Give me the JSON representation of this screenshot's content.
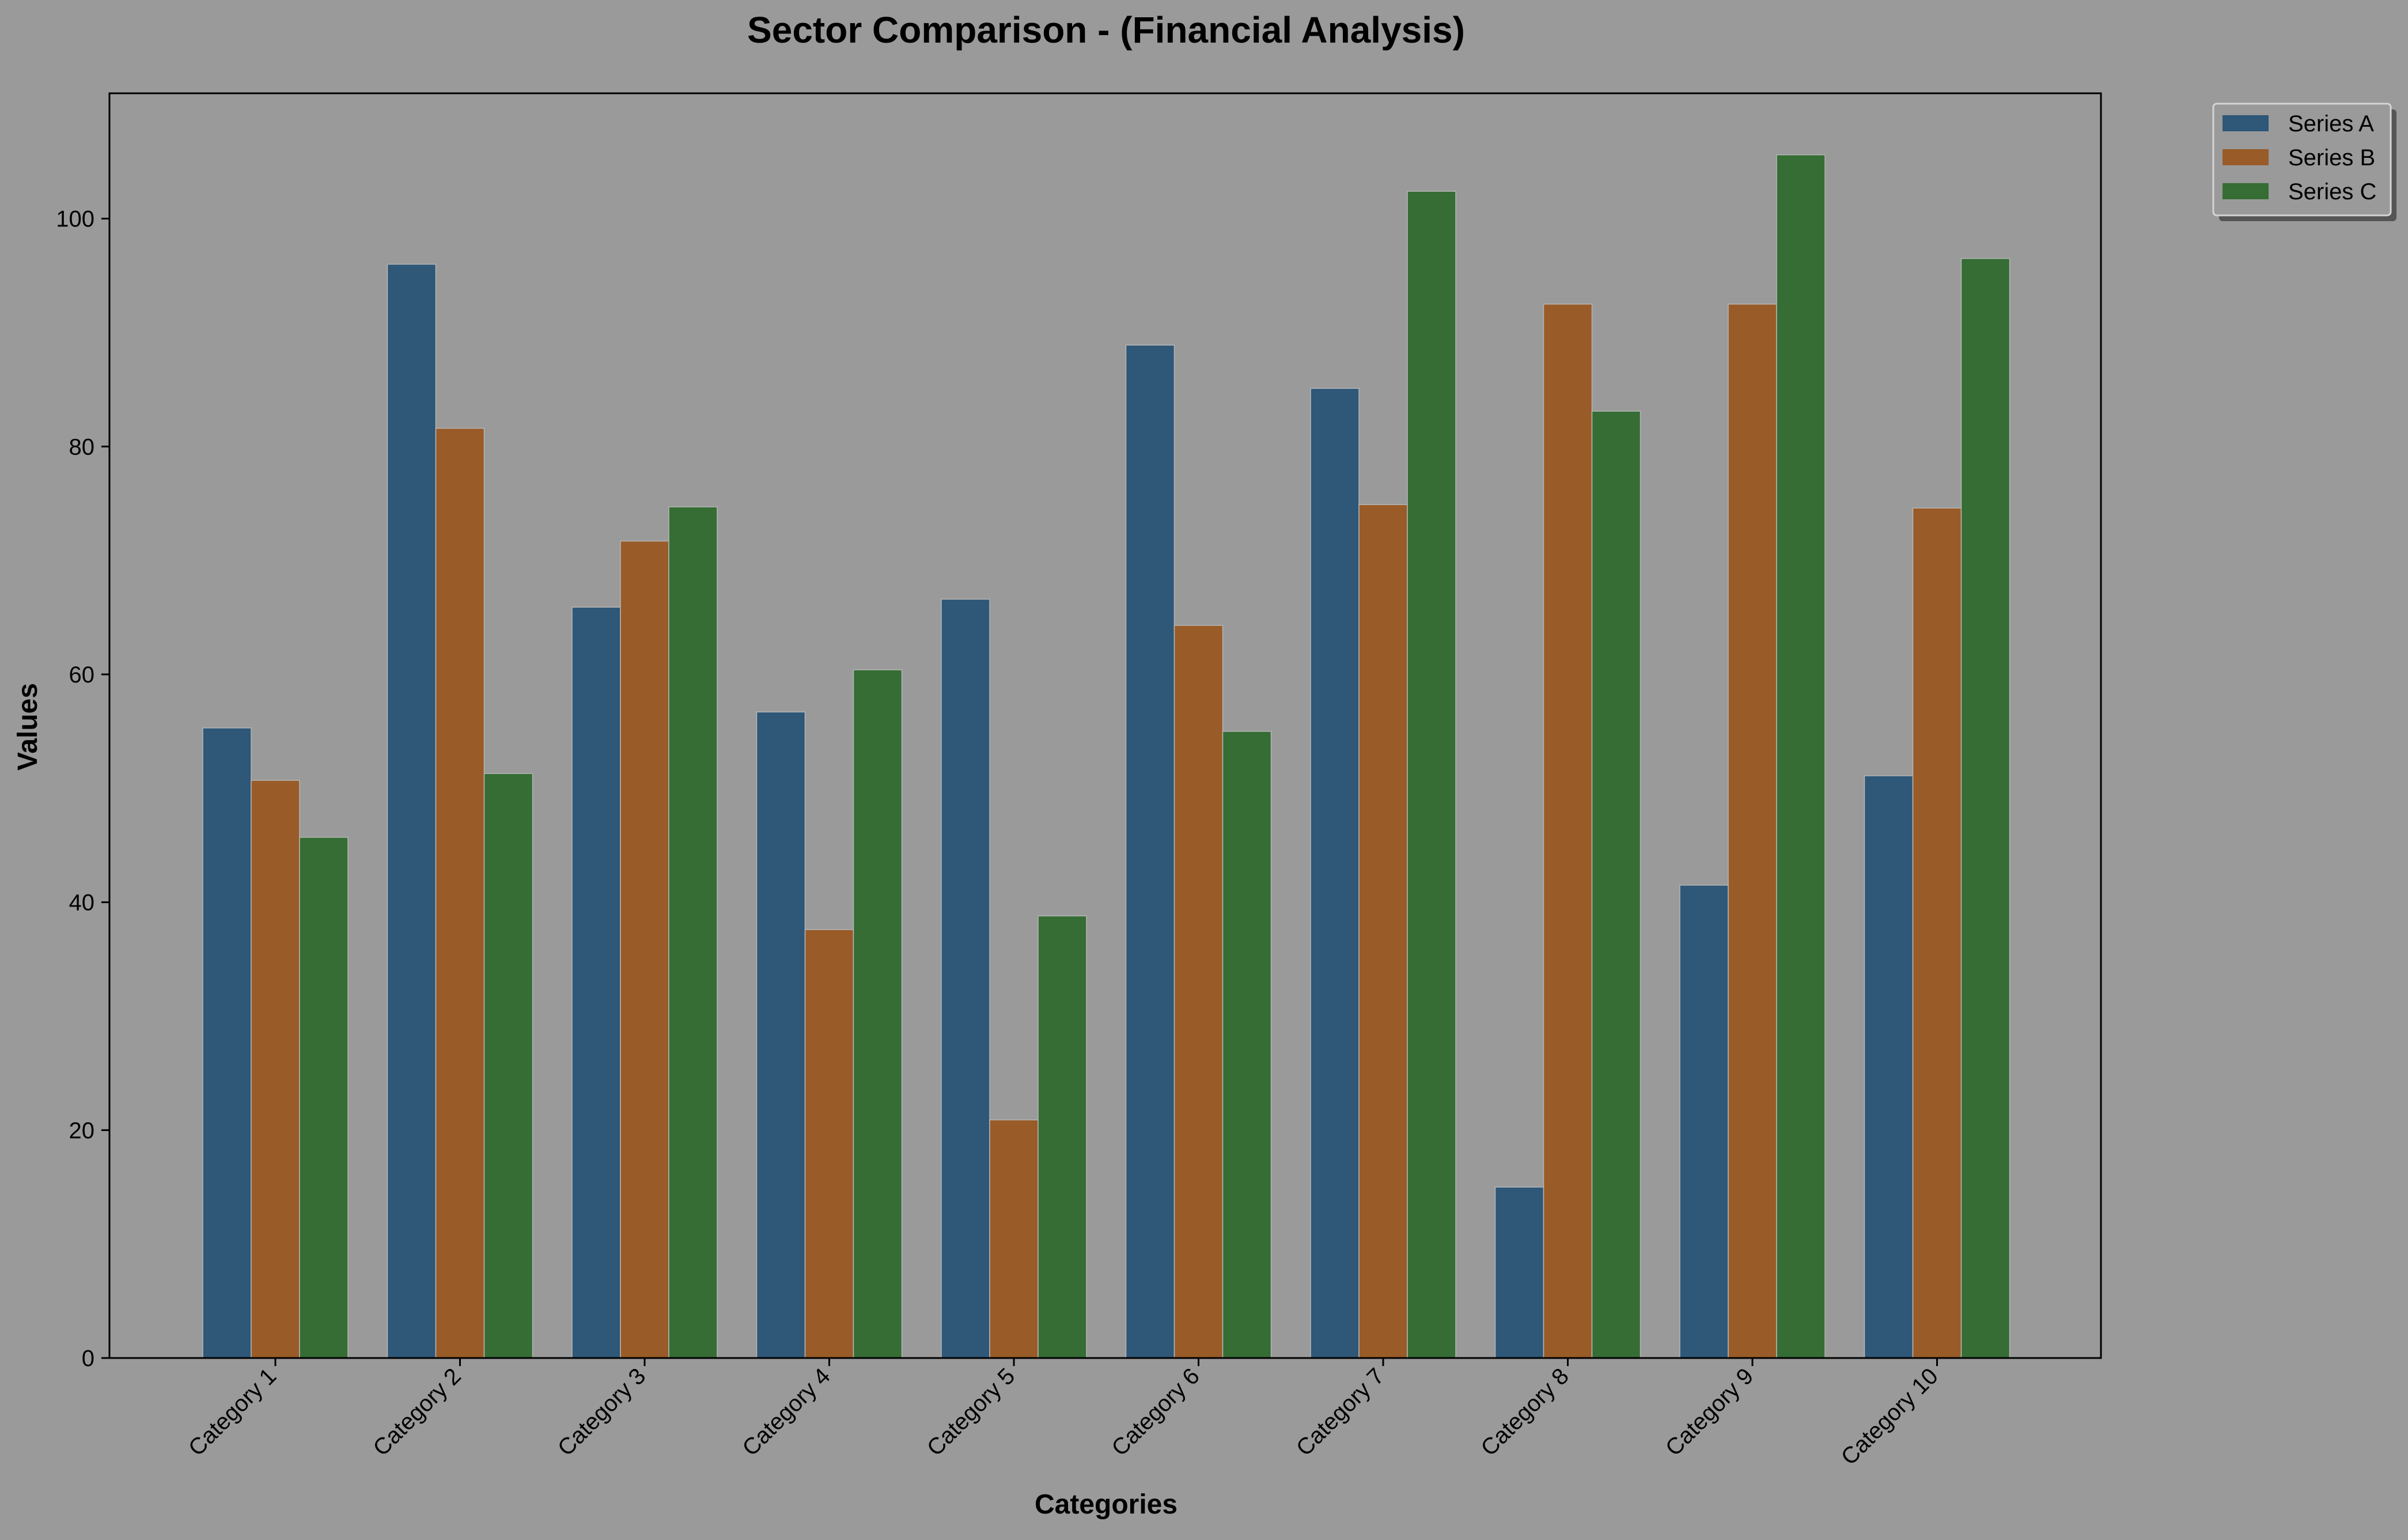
{
  "chart_data": {
    "type": "bar",
    "title": "Sector Comparison - (Financial Analysis)",
    "xlabel": "Categories",
    "ylabel": "Values",
    "categories": [
      "Category 1",
      "Category 2",
      "Category 3",
      "Category 4",
      "Category 5",
      "Category 6",
      "Category 7",
      "Category 8",
      "Category 9",
      "Category 10"
    ],
    "series": [
      {
        "name": "Series A",
        "color": "#2e5778",
        "values": [
          55.3,
          96.0,
          65.9,
          56.7,
          66.6,
          88.9,
          85.1,
          15.0,
          41.5,
          51.1
        ]
      },
      {
        "name": "Series B",
        "color": "#995b28",
        "values": [
          50.7,
          81.6,
          71.7,
          37.6,
          20.9,
          64.3,
          74.9,
          92.5,
          92.5,
          74.6
        ]
      },
      {
        "name": "Series C",
        "color": "#356d34",
        "values": [
          45.7,
          51.3,
          74.7,
          60.4,
          38.8,
          55.0,
          102.4,
          83.1,
          105.6,
          96.5
        ]
      }
    ],
    "ylim": [
      0,
      111
    ],
    "yticks": [
      0,
      20,
      40,
      60,
      80,
      100
    ],
    "grid": false,
    "legend_position": "outside-top-right",
    "background_color": "#9a9a9a"
  }
}
